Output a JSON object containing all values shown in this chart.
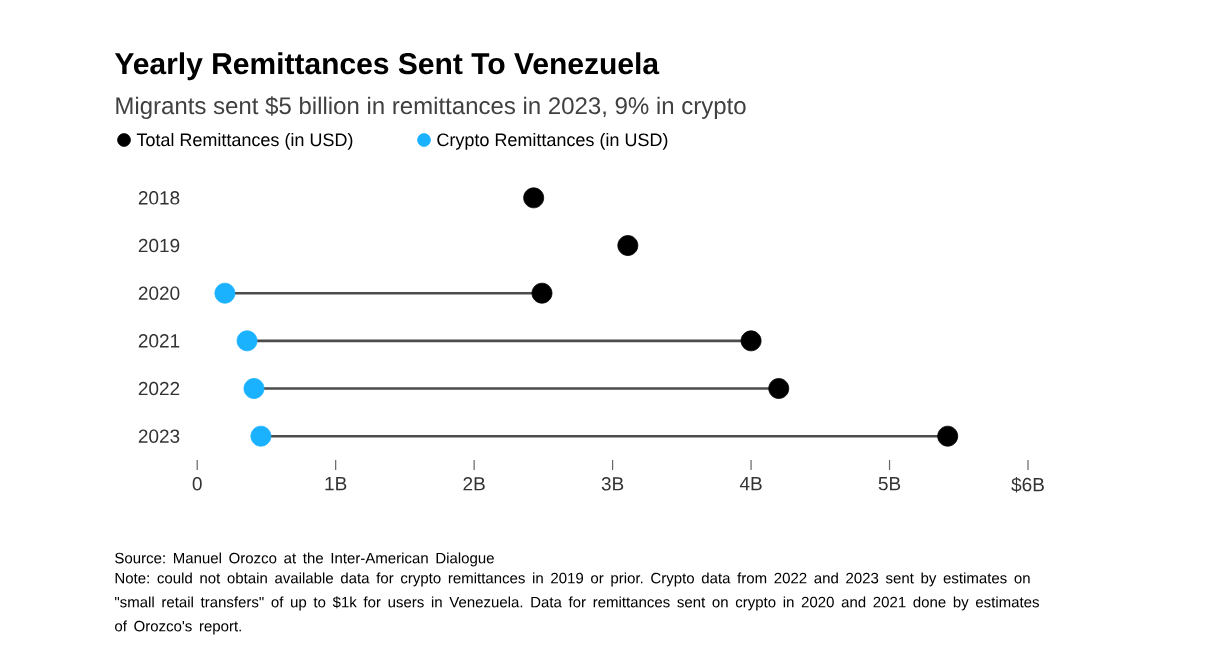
{
  "chart_data": {
    "type": "scatter",
    "orientation": "horizontal",
    "title": "Yearly Remittances Sent To Venezuela",
    "subtitle": "Migrants sent $5 billion in remittances in 2023, 9% in crypto",
    "categories": [
      "2018",
      "2019",
      "2020",
      "2021",
      "2022",
      "2023"
    ],
    "series": [
      {
        "name": "Total Remittances (in USD)",
        "color": "#000000",
        "values": [
          2.43,
          3.11,
          2.49,
          4.0,
          4.2,
          5.42
        ]
      },
      {
        "name": "Crypto Remittances (in USD)",
        "color": "#1ab2ff",
        "values": [
          null,
          null,
          0.2,
          0.36,
          0.41,
          0.46
        ]
      }
    ],
    "xlim": [
      0,
      6
    ],
    "xticks": [
      0,
      {
        "value": 1,
        "label": "1B"
      },
      {
        "value": 2,
        "label": "2B"
      },
      {
        "value": 3,
        "label": "3B"
      },
      {
        "value": 4,
        "label": "4B"
      },
      {
        "value": 5,
        "label": "5B"
      },
      {
        "value": 6,
        "label": "$6B"
      }
    ],
    "legend": "top left",
    "marker": "circle",
    "annotations": [
      "Source: Manuel Orozco at the Inter-American Dialogue",
      "Note: could not obtain available data for crypto remittances in 2019 or prior. Crypto data from 2022 and 2023 sent by estimates on \"small retail transfers\" of up to $1k for users in Venezuela. Data for remittances sent on crypto in 2020 and 2021 done by estimates of Orozco's report."
    ]
  }
}
